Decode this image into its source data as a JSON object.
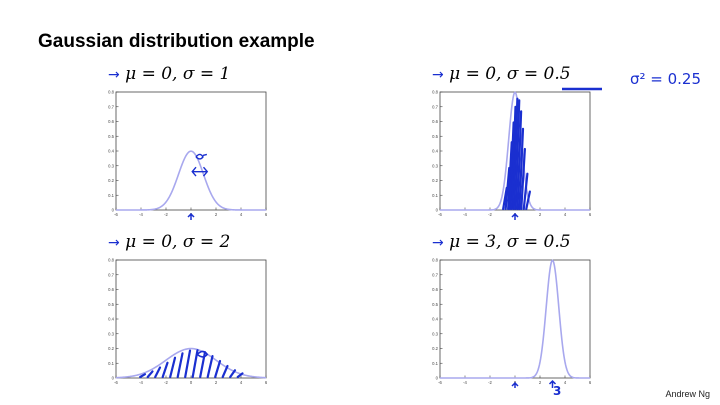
{
  "slide": {
    "title": "Gaussian distribution example",
    "footer": "Andrew Ng"
  },
  "annotations": {
    "variance_note": "σ² = 0.25",
    "shift_note": "3"
  },
  "colors": {
    "curve": "#a8a8ee",
    "ink": "#1a2fd0",
    "axis": "#444444"
  },
  "chart_data": [
    {
      "type": "line",
      "title": "μ = 0, σ = 1",
      "mu": 0,
      "sigma": 1,
      "xlim": [
        -6,
        6
      ],
      "ylim": [
        0,
        0.8
      ],
      "xticks": [
        "-6",
        "-4",
        "-2",
        "0",
        "2",
        "4",
        "6"
      ],
      "yticks": [
        "0",
        "0.1",
        "0.2",
        "0.3",
        "0.4",
        "0.5",
        "0.6",
        "0.7",
        "0.8"
      ],
      "series": [
        {
          "x": [
            -6,
            -3,
            -2,
            -1,
            -0.5,
            0,
            0.5,
            1,
            2,
            3,
            6
          ],
          "y": [
            0,
            0.004,
            0.054,
            0.242,
            0.352,
            0.399,
            0.352,
            0.242,
            0.054,
            0.004,
            0
          ]
        }
      ]
    },
    {
      "type": "line",
      "title": "μ = 0, σ = 0.5",
      "mu": 0,
      "sigma": 0.5,
      "xlim": [
        -6,
        6
      ],
      "ylim": [
        0,
        0.8
      ],
      "xticks": [
        "-6",
        "-4",
        "-2",
        "0",
        "2",
        "4",
        "6"
      ],
      "yticks": [
        "0",
        "0.1",
        "0.2",
        "0.3",
        "0.4",
        "0.5",
        "0.6",
        "0.7",
        "0.8"
      ],
      "series": [
        {
          "x": [
            -6,
            -1.5,
            -1,
            -0.5,
            -0.25,
            0,
            0.25,
            0.5,
            1,
            1.5,
            6
          ],
          "y": [
            0,
            0.009,
            0.108,
            0.484,
            0.704,
            0.798,
            0.704,
            0.484,
            0.108,
            0.009,
            0
          ]
        }
      ]
    },
    {
      "type": "line",
      "title": "μ = 0, σ = 2",
      "mu": 0,
      "sigma": 2,
      "xlim": [
        -6,
        6
      ],
      "ylim": [
        0,
        0.8
      ],
      "xticks": [
        "-6",
        "-4",
        "-2",
        "0",
        "2",
        "4",
        "6"
      ],
      "yticks": [
        "0",
        "0.1",
        "0.2",
        "0.3",
        "0.4",
        "0.5",
        "0.6",
        "0.7",
        "0.8"
      ],
      "series": [
        {
          "x": [
            -6,
            -4,
            -2,
            -1,
            0,
            1,
            2,
            4,
            6
          ],
          "y": [
            0.002,
            0.027,
            0.121,
            0.176,
            0.199,
            0.176,
            0.121,
            0.027,
            0.002
          ]
        }
      ]
    },
    {
      "type": "line",
      "title": "μ = 3, σ = 0.5",
      "mu": 3,
      "sigma": 0.5,
      "xlim": [
        -6,
        6
      ],
      "ylim": [
        0,
        0.8
      ],
      "xticks": [
        "-6",
        "-4",
        "-2",
        "0",
        "2",
        "4",
        "6"
      ],
      "yticks": [
        "0",
        "0.1",
        "0.2",
        "0.3",
        "0.4",
        "0.5",
        "0.6",
        "0.7",
        "0.8"
      ],
      "series": [
        {
          "x": [
            -6,
            1.5,
            2,
            2.5,
            2.75,
            3,
            3.25,
            3.5,
            4,
            4.5,
            6
          ],
          "y": [
            0,
            0.009,
            0.108,
            0.484,
            0.704,
            0.798,
            0.704,
            0.484,
            0.108,
            0.009,
            0
          ]
        }
      ]
    }
  ]
}
